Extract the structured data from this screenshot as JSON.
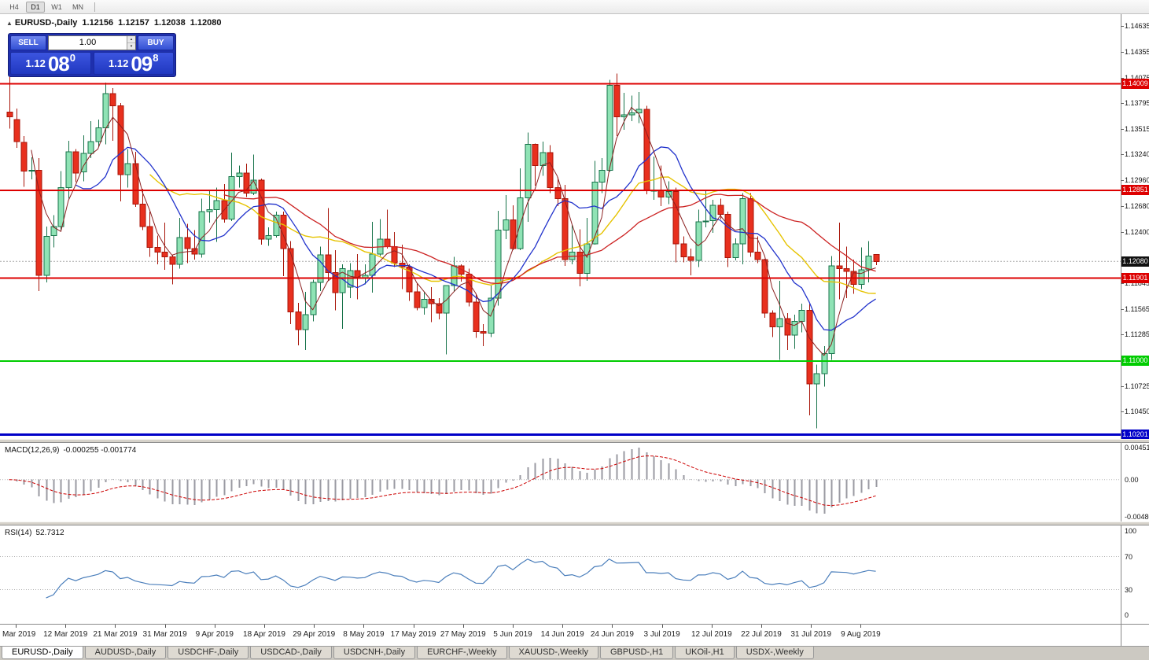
{
  "toolbar": {
    "timeframes": [
      "H4",
      "D1",
      "W1",
      "MN"
    ],
    "active": "D1"
  },
  "chart_header": {
    "collapse_icon": "▲",
    "symbol": "EURUSD-,Daily",
    "open": "1.12156",
    "high": "1.12157",
    "low": "1.12038",
    "close": "1.12080"
  },
  "trade_panel": {
    "sell_label": "SELL",
    "buy_label": "BUY",
    "volume": "1.00",
    "volume_up_icon": "▴",
    "volume_down_icon": "▾",
    "sell_price": {
      "prefix": "1.12",
      "big": "08",
      "sup": "0"
    },
    "buy_price": {
      "prefix": "1.12",
      "big": "09",
      "sup": "8"
    }
  },
  "current_price": {
    "value": 1.1208,
    "label": "1.12080"
  },
  "macd_panel": {
    "name": "MACD(12,26,9)",
    "values": "-0.000255 -0.001774",
    "scale_top": "0.0045170",
    "scale_zero": "0.00",
    "scale_bottom": "-0.0048061"
  },
  "rsi_panel": {
    "name": "RSI(14)",
    "value": "52.7312",
    "scale_top": "100",
    "level_high": "70",
    "level_low": "30",
    "scale_bottom": "0"
  },
  "tabs": {
    "active_index": 0,
    "items": [
      "EURUSD-,Daily",
      "AUDUSD-,Daily",
      "USDCHF-,Daily",
      "USDCAD-,Daily",
      "USDCNH-,Daily",
      "EURCHF-,Weekly",
      "XAUUSD-,Weekly",
      "GBPUSD-,H1",
      "UKOil-,H1",
      "USDX-,Weekly"
    ]
  },
  "colors": {
    "bull_fill": "#8fe3b5",
    "bull_border": "#17734a",
    "bear_fill": "#e8301e",
    "bear_border": "#a81408",
    "ma_yellow": "#e6c300",
    "ma_red": "#cc2222",
    "ma_blue": "#2233cc",
    "ma_darkred": "#8b2020",
    "hline_red": "#dd0000",
    "hline_green": "#00cc00",
    "hline_blue": "#0000c8",
    "current_line": "#a8a8a8",
    "current_badge_bg": "#111111",
    "macd_histogram": "#9a9aa2",
    "macd_signal": "#cc0000",
    "zero_line": "#b8b8b8",
    "rsi_line": "#4a7ebb",
    "level_line": "#b0b0b0"
  },
  "chart_data": {
    "type": "candlestick",
    "symbol": "EURUSD-",
    "timeframe": "Daily",
    "ohlc_current": {
      "open": 1.12156,
      "high": 1.12157,
      "low": 1.12038,
      "close": 1.1208
    },
    "y_axis_labels": [
      "1.14635",
      "1.14355",
      "1.14075",
      "1.13795",
      "1.13515",
      "1.13240",
      "1.12960",
      "1.12680",
      "1.12400",
      "1.11845",
      "1.11565",
      "1.11285",
      "1.10725",
      "1.10450"
    ],
    "x_axis_labels": [
      "3 Mar 2019",
      "12 Mar 2019",
      "21 Mar 2019",
      "31 Mar 2019",
      "9 Apr 2019",
      "18 Apr 2019",
      "29 Apr 2019",
      "8 May 2019",
      "17 May 2019",
      "27 May 2019",
      "5 Jun 2019",
      "14 Jun 2019",
      "24 Jun 2019",
      "3 Jul 2019",
      "12 Jul 2019",
      "22 Jul 2019",
      "31 Jul 2019",
      "9 Aug 2019"
    ],
    "horizontal_lines": [
      {
        "price": 1.14009,
        "label": "1.14009",
        "color_key": "hline_red",
        "width": 2
      },
      {
        "price": 1.12851,
        "label": "1.12851",
        "color_key": "hline_red",
        "width": 2
      },
      {
        "price": 1.11901,
        "label": "1.11901",
        "color_key": "hline_red",
        "width": 2
      },
      {
        "price": 1.11,
        "label": "1.11000",
        "color_key": "hline_green",
        "width": 2
      },
      {
        "price": 1.10201,
        "label": "1.10201",
        "color_key": "hline_blue",
        "width": 3
      }
    ],
    "moving_averages": [
      {
        "period": 20,
        "color_key": "ma_yellow",
        "width": 1.4
      },
      {
        "period": 30,
        "color_key": "ma_red",
        "width": 1.3
      },
      {
        "period": 10,
        "color_key": "ma_blue",
        "width": 1.3
      },
      {
        "period": 4,
        "color_key": "ma_darkred",
        "width": 1
      }
    ],
    "indicators": [
      {
        "name": "MACD",
        "params": "12,26,9"
      },
      {
        "name": "RSI",
        "params": "14"
      }
    ],
    "candles": [
      [
        1.137,
        1.1408,
        1.1352,
        1.1365
      ],
      [
        1.1362,
        1.1374,
        1.1331,
        1.1338
      ],
      [
        1.1337,
        1.1344,
        1.1289,
        1.1306
      ],
      [
        1.1306,
        1.1321,
        1.1297,
        1.1307
      ],
      [
        1.1307,
        1.132,
        1.1176,
        1.1193
      ],
      [
        1.1193,
        1.1246,
        1.1185,
        1.1235
      ],
      [
        1.1236,
        1.1258,
        1.1223,
        1.1246
      ],
      [
        1.1246,
        1.1306,
        1.1242,
        1.1288
      ],
      [
        1.1288,
        1.1339,
        1.1276,
        1.1327
      ],
      [
        1.1327,
        1.133,
        1.1294,
        1.1304
      ],
      [
        1.1305,
        1.1345,
        1.1295,
        1.1325
      ],
      [
        1.1325,
        1.136,
        1.132,
        1.1338
      ],
      [
        1.1338,
        1.1362,
        1.1332,
        1.1353
      ],
      [
        1.1353,
        1.1402,
        1.1335,
        1.139
      ],
      [
        1.139,
        1.1396,
        1.1339,
        1.1377
      ],
      [
        1.1377,
        1.138,
        1.1273,
        1.1302
      ],
      [
        1.1302,
        1.133,
        1.1288,
        1.1314
      ],
      [
        1.1314,
        1.1327,
        1.1267,
        1.127
      ],
      [
        1.127,
        1.1287,
        1.1242,
        1.1246
      ],
      [
        1.1246,
        1.1262,
        1.1213,
        1.1223
      ],
      [
        1.1223,
        1.1236,
        1.1205,
        1.1218
      ],
      [
        1.1218,
        1.125,
        1.1199,
        1.1213
      ],
      [
        1.1213,
        1.1215,
        1.1183,
        1.1205
      ],
      [
        1.1205,
        1.1255,
        1.12,
        1.1234
      ],
      [
        1.1234,
        1.1249,
        1.1206,
        1.1222
      ],
      [
        1.1222,
        1.1242,
        1.121,
        1.1216
      ],
      [
        1.1216,
        1.1276,
        1.1212,
        1.1262
      ],
      [
        1.1262,
        1.1285,
        1.125,
        1.1264
      ],
      [
        1.1264,
        1.1288,
        1.1229,
        1.1274
      ],
      [
        1.1274,
        1.1292,
        1.125,
        1.1254
      ],
      [
        1.1254,
        1.1326,
        1.1252,
        1.13
      ],
      [
        1.13,
        1.1312,
        1.1288,
        1.1304
      ],
      [
        1.1304,
        1.1314,
        1.1278,
        1.1282
      ],
      [
        1.1282,
        1.1324,
        1.128,
        1.1296
      ],
      [
        1.1296,
        1.1298,
        1.1226,
        1.1232
      ],
      [
        1.1232,
        1.1245,
        1.1225,
        1.1236
      ],
      [
        1.1236,
        1.1262,
        1.1234,
        1.1258
      ],
      [
        1.1258,
        1.1262,
        1.1192,
        1.1222
      ],
      [
        1.1222,
        1.123,
        1.114,
        1.1153
      ],
      [
        1.1153,
        1.1163,
        1.1117,
        1.1134
      ],
      [
        1.1134,
        1.1175,
        1.1112,
        1.115
      ],
      [
        1.115,
        1.1188,
        1.1143,
        1.1185
      ],
      [
        1.1185,
        1.1224,
        1.1176,
        1.1215
      ],
      [
        1.1215,
        1.1266,
        1.1187,
        1.1196
      ],
      [
        1.1196,
        1.122,
        1.1155,
        1.1174
      ],
      [
        1.1174,
        1.1205,
        1.1135,
        1.12
      ],
      [
        1.118,
        1.1206,
        1.1168,
        1.1198
      ],
      [
        1.1198,
        1.1216,
        1.1167,
        1.119
      ],
      [
        1.119,
        1.1205,
        1.1183,
        1.1193
      ],
      [
        1.1193,
        1.1251,
        1.1174,
        1.1216
      ],
      [
        1.1216,
        1.1254,
        1.1214,
        1.1232
      ],
      [
        1.1232,
        1.1264,
        1.1222,
        1.1224
      ],
      [
        1.1224,
        1.124,
        1.1202,
        1.1206
      ],
      [
        1.1206,
        1.1226,
        1.1178,
        1.1202
      ],
      [
        1.1202,
        1.1205,
        1.1165,
        1.1175
      ],
      [
        1.1175,
        1.1184,
        1.1155,
        1.1158
      ],
      [
        1.1158,
        1.1175,
        1.115,
        1.1167
      ],
      [
        1.1167,
        1.118,
        1.1142,
        1.1162
      ],
      [
        1.1162,
        1.1168,
        1.1145,
        1.1152
      ],
      [
        1.1152,
        1.1158,
        1.1107,
        1.1182
      ],
      [
        1.1182,
        1.1213,
        1.1175,
        1.1203
      ],
      [
        1.1203,
        1.1205,
        1.1186,
        1.1194
      ],
      [
        1.1194,
        1.12,
        1.1159,
        1.1164
      ],
      [
        1.1164,
        1.1173,
        1.1125,
        1.1132
      ],
      [
        1.1132,
        1.114,
        1.1116,
        1.113
      ],
      [
        1.113,
        1.1182,
        1.1126,
        1.1168
      ],
      [
        1.1168,
        1.1263,
        1.116,
        1.1242
      ],
      [
        1.1242,
        1.128,
        1.1232,
        1.1253
      ],
      [
        1.1253,
        1.1269,
        1.122,
        1.1222
      ],
      [
        1.1222,
        1.1309,
        1.122,
        1.1277
      ],
      [
        1.1277,
        1.1348,
        1.1251,
        1.1335
      ],
      [
        1.1335,
        1.1336,
        1.129,
        1.1312
      ],
      [
        1.1312,
        1.1338,
        1.1301,
        1.1326
      ],
      [
        1.1326,
        1.1334,
        1.1282,
        1.1288
      ],
      [
        1.1288,
        1.1299,
        1.1268,
        1.1276
      ],
      [
        1.1276,
        1.1291,
        1.1203,
        1.121
      ],
      [
        1.121,
        1.1248,
        1.1205,
        1.1218
      ],
      [
        1.1218,
        1.1243,
        1.1181,
        1.1195
      ],
      [
        1.1195,
        1.1255,
        1.1187,
        1.1227
      ],
      [
        1.1227,
        1.1317,
        1.1226,
        1.1294
      ],
      [
        1.1294,
        1.132,
        1.1282,
        1.1307
      ],
      [
        1.1307,
        1.1405,
        1.1305,
        1.1399
      ],
      [
        1.1399,
        1.1412,
        1.1344,
        1.1365
      ],
      [
        1.1365,
        1.1391,
        1.1351,
        1.1367
      ],
      [
        1.1367,
        1.1388,
        1.136,
        1.1369
      ],
      [
        1.1369,
        1.1392,
        1.1358,
        1.1373
      ],
      [
        1.1373,
        1.1377,
        1.1281,
        1.1285
      ],
      [
        1.1285,
        1.1322,
        1.1275,
        1.1285
      ],
      [
        1.1285,
        1.1312,
        1.1268,
        1.1278
      ],
      [
        1.1278,
        1.1295,
        1.127,
        1.1284
      ],
      [
        1.1284,
        1.1288,
        1.1207,
        1.1227
      ],
      [
        1.1227,
        1.1235,
        1.1207,
        1.1213
      ],
      [
        1.1213,
        1.1222,
        1.1193,
        1.1209
      ],
      [
        1.1209,
        1.1264,
        1.1202,
        1.1251
      ],
      [
        1.1251,
        1.1285,
        1.1245,
        1.1252
      ],
      [
        1.1252,
        1.1275,
        1.1239,
        1.1269
      ],
      [
        1.1269,
        1.1276,
        1.1254,
        1.1259
      ],
      [
        1.1259,
        1.1262,
        1.1202,
        1.1212
      ],
      [
        1.1212,
        1.1233,
        1.1209,
        1.1227
      ],
      [
        1.1227,
        1.1282,
        1.1205,
        1.1276
      ],
      [
        1.1276,
        1.1282,
        1.1213,
        1.1218
      ],
      [
        1.1218,
        1.1235,
        1.1206,
        1.121
      ],
      [
        1.121,
        1.1211,
        1.1147,
        1.1152
      ],
      [
        1.1152,
        1.1155,
        1.1126,
        1.1137
      ],
      [
        1.1137,
        1.1187,
        1.1101,
        1.1146
      ],
      [
        1.1146,
        1.1152,
        1.1112,
        1.1128
      ],
      [
        1.1128,
        1.115,
        1.1113,
        1.1143
      ],
      [
        1.1143,
        1.1162,
        1.1131,
        1.1155
      ],
      [
        1.1155,
        1.1162,
        1.1041,
        1.1075
      ],
      [
        1.1075,
        1.1096,
        1.1027,
        1.1086
      ],
      [
        1.1086,
        1.1116,
        1.1072,
        1.1108
      ],
      [
        1.1108,
        1.1214,
        1.1101,
        1.1203
      ],
      [
        1.1203,
        1.125,
        1.1167,
        1.12
      ],
      [
        1.12,
        1.1224,
        1.1168,
        1.1197
      ],
      [
        1.1197,
        1.121,
        1.1173,
        1.1183
      ],
      [
        1.1183,
        1.1223,
        1.1178,
        1.1199
      ],
      [
        1.1199,
        1.123,
        1.1185,
        1.1214
      ],
      [
        1.12156,
        1.12157,
        1.12038,
        1.1208
      ]
    ]
  }
}
